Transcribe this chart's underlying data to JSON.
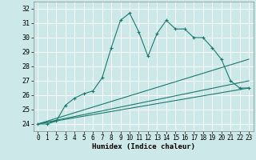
{
  "xlabel": "Humidex (Indice chaleur)",
  "bg_color": "#cce8e8",
  "grid_color": "#b0d4d4",
  "line_color": "#1a7a6e",
  "xlim": [
    -0.5,
    23.5
  ],
  "ylim": [
    23.5,
    32.5
  ],
  "yticks": [
    24,
    25,
    26,
    27,
    28,
    29,
    30,
    31,
    32
  ],
  "xticks": [
    0,
    1,
    2,
    3,
    4,
    5,
    6,
    7,
    8,
    9,
    10,
    11,
    12,
    13,
    14,
    15,
    16,
    17,
    18,
    19,
    20,
    21,
    22,
    23
  ],
  "series": [
    {
      "x": [
        0,
        1,
        2,
        3,
        4,
        5,
        6,
        7,
        8,
        9,
        10,
        11,
        12,
        13,
        14,
        15,
        16,
        17,
        18,
        19,
        20,
        21,
        22,
        23
      ],
      "y": [
        24.0,
        24.0,
        24.2,
        25.3,
        25.8,
        26.1,
        26.3,
        27.2,
        29.3,
        31.2,
        31.7,
        30.4,
        28.7,
        30.3,
        31.2,
        30.6,
        30.6,
        30.0,
        30.0,
        29.3,
        28.5,
        27.0,
        26.5,
        26.5
      ],
      "marker": "+"
    },
    {
      "x": [
        0,
        23
      ],
      "y": [
        24.0,
        28.5
      ],
      "marker": null
    },
    {
      "x": [
        0,
        23
      ],
      "y": [
        24.0,
        27.0
      ],
      "marker": null
    },
    {
      "x": [
        0,
        23
      ],
      "y": [
        24.0,
        26.5
      ],
      "marker": null
    }
  ]
}
